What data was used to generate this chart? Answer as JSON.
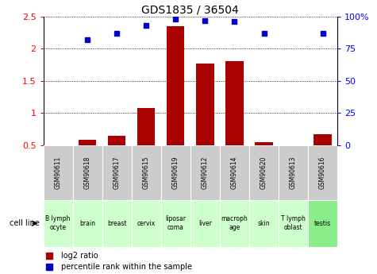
{
  "title": "GDS1835 / 36504",
  "samples": [
    "GSM90611",
    "GSM90618",
    "GSM90617",
    "GSM90615",
    "GSM90619",
    "GSM90612",
    "GSM90614",
    "GSM90620",
    "GSM90613",
    "GSM90616"
  ],
  "cell_lines": [
    "B lymph\nocyte",
    "brain",
    "breast",
    "cervix",
    "liposar\ncoma",
    "liver",
    "macroph\nage",
    "skin",
    "T lymph\noblast",
    "testis"
  ],
  "log2_ratio": [
    0.0,
    0.58,
    0.65,
    1.08,
    2.35,
    1.77,
    1.8,
    0.55,
    0.0,
    0.67
  ],
  "percentile_rank": [
    0.0,
    82,
    87,
    93,
    98,
    97,
    96,
    87,
    0.0,
    87
  ],
  "bar_color": "#aa0000",
  "dot_color": "#0000cc",
  "ylim_left": [
    0.5,
    2.5
  ],
  "ylim_right": [
    0,
    100
  ],
  "yticks_left": [
    0.5,
    1.0,
    1.5,
    2.0,
    2.5
  ],
  "yticks_right": [
    0,
    25,
    50,
    75,
    100
  ],
  "ylabel_right_labels": [
    "0",
    "25",
    "50",
    "75",
    "100%"
  ],
  "ytick_left_labels": [
    "0.5",
    "1",
    "1.5",
    "2",
    "2.5"
  ],
  "legend_log2": "log2 ratio",
  "legend_pct": "percentile rank within the sample",
  "cell_line_label": "cell line",
  "gsm_bg": "#cccccc",
  "cell_bg": "#aaffaa",
  "cell_bg_light": "#ccffcc"
}
